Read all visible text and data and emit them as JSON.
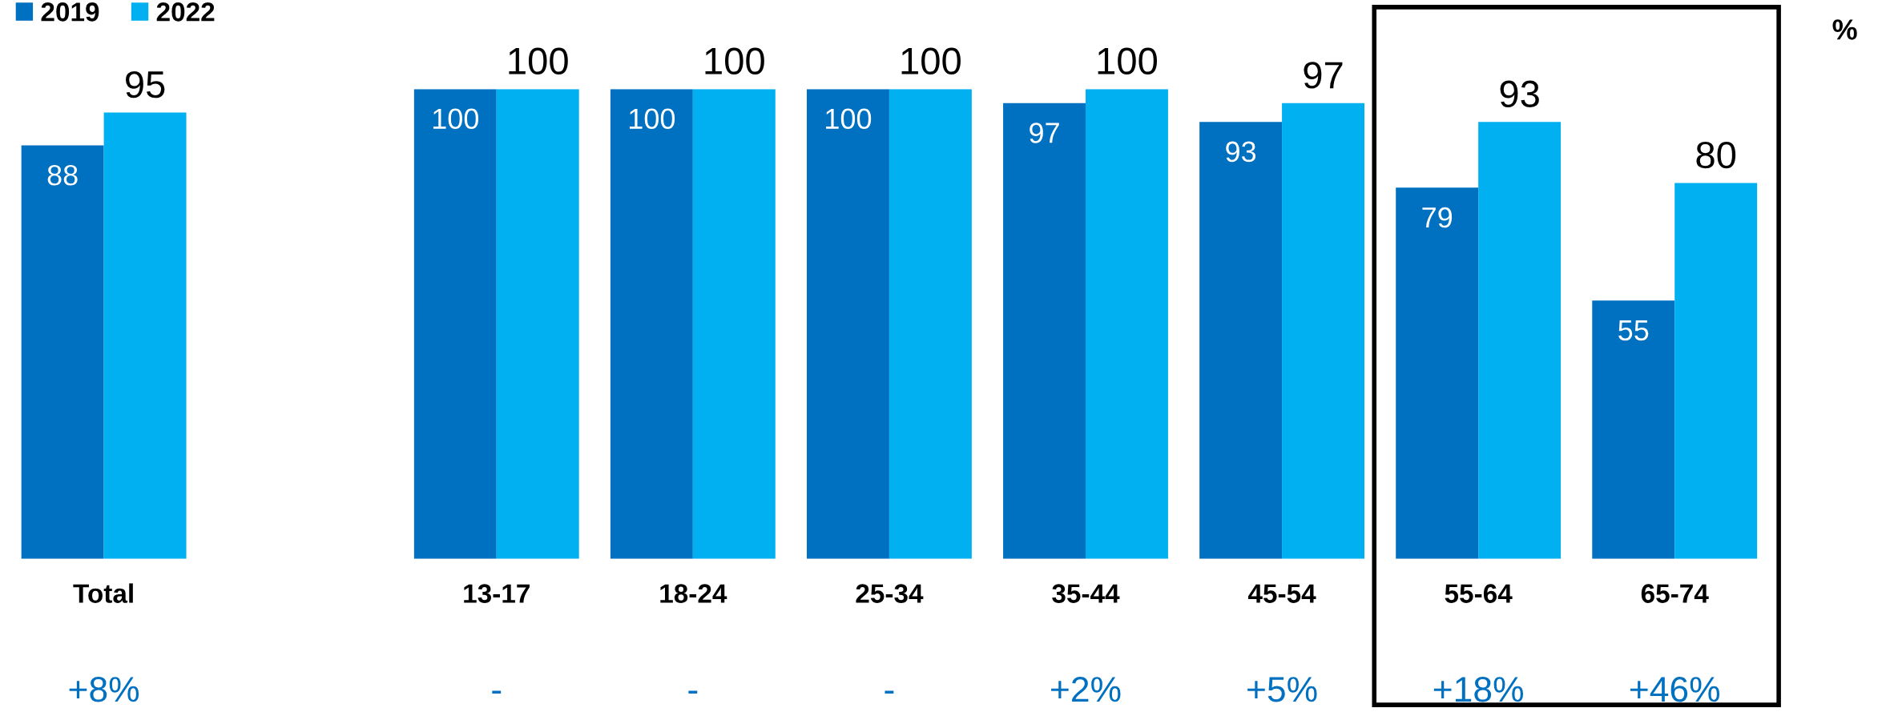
{
  "chart_data": {
    "type": "bar",
    "categories": [
      "Total",
      null,
      "13-17",
      "18-24",
      "25-34",
      "35-44",
      "45-54",
      "55-64",
      "65-74"
    ],
    "series": [
      {
        "name": "2019",
        "color": "#0070c0",
        "values": [
          88,
          null,
          100,
          100,
          100,
          97,
          93,
          79,
          55
        ]
      },
      {
        "name": "2022",
        "color": "#00b0f0",
        "values": [
          95,
          null,
          100,
          100,
          100,
          100,
          97,
          93,
          80
        ]
      }
    ],
    "data_labels": true,
    "legend": "top left",
    "annotations": [
      "+8%",
      "-",
      "-",
      "-",
      "+2%",
      "+5%",
      "+18%",
      "+46%",
      "%"
    ]
  }
}
